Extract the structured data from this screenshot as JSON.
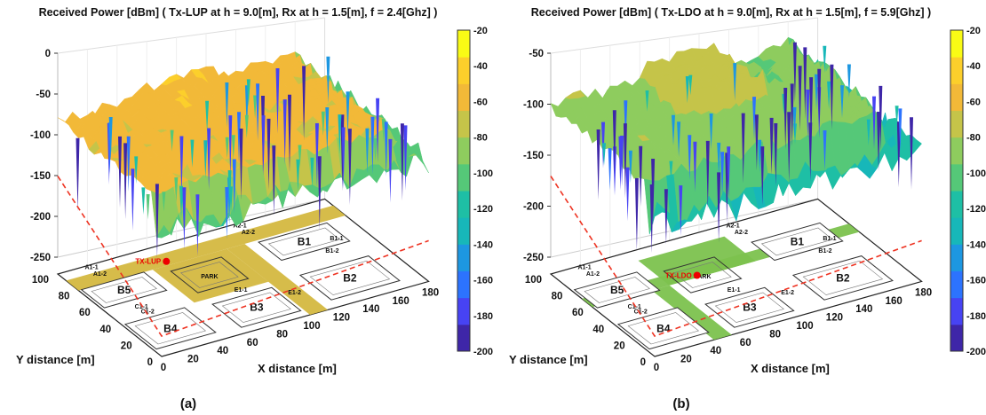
{
  "colormap": [
    "#3e26a8",
    "#4743f3",
    "#2c73fe",
    "#1d97e1",
    "#17b7b9",
    "#1ebfa5",
    "#55c878",
    "#8ecc5e",
    "#c5c449",
    "#f2b938",
    "#fccf2b",
    "#f9fb15"
  ],
  "chart_data": [
    {
      "type": "surface",
      "title": "Received Power [dBm]  ( Tx-LUP at h = 9.0[m], Rx at h = 1.5[m], f = 2.4[Ghz] )",
      "xlabel": "X distance [m]",
      "ylabel": "Y distance [m]",
      "caption": "(a)",
      "tx_label": "TX-LUP",
      "x_ticks": [
        "0",
        "20",
        "40",
        "60",
        "80",
        "100",
        "120",
        "140",
        "160",
        "180"
      ],
      "y_ticks": [
        "0",
        "20",
        "40",
        "60",
        "80",
        "100"
      ],
      "z_ticks": [
        "0",
        "-50",
        "-100",
        "-150",
        "-200",
        "-250"
      ],
      "zlim": [
        -250,
        0
      ],
      "colorbar_ticks": [
        "-20",
        "-40",
        "-60",
        "-80",
        "-100",
        "-120",
        "-140",
        "-160",
        "-180",
        "-200"
      ],
      "colorbar_range": [
        -200,
        -20
      ],
      "typical_level_dBm": -62,
      "buildings": [
        "B5",
        "B4",
        "B3",
        "B2",
        "B1",
        "PARK"
      ],
      "area_labels": [
        "A1-1",
        "A1-2",
        "A2-1",
        "A2-2",
        "B1-1",
        "B1-2",
        "C1-1",
        "C1-2",
        "E1-1",
        "E1-2"
      ],
      "road_fill": "#d4b840"
    },
    {
      "type": "surface",
      "title": "Received Power [dBm] ( Tx-LDO at h = 9.0[m], Rx at h = 1.5[m], f = 5.9[Ghz] )",
      "xlabel": "X distance [m]",
      "ylabel": "Y distance [m]",
      "caption": "(b)",
      "tx_label": "TX-LDO",
      "x_ticks": [
        "0",
        "20",
        "40",
        "60",
        "80",
        "100",
        "120",
        "140",
        "160",
        "180"
      ],
      "y_ticks": [
        "0",
        "20",
        "40",
        "60",
        "80",
        "100"
      ],
      "z_ticks": [
        "-50",
        "-100",
        "-150",
        "-200",
        "-250"
      ],
      "zlim": [
        -250,
        -50
      ],
      "colorbar_ticks": [
        "-20",
        "-40",
        "-60",
        "-80",
        "-100",
        "-120",
        "-140",
        "-160",
        "-180",
        "-200"
      ],
      "colorbar_range": [
        -200,
        -20
      ],
      "typical_level_dBm": -85,
      "buildings": [
        "B5",
        "B4",
        "B3",
        "B2",
        "B1",
        "PARK"
      ],
      "area_labels": [
        "A1-1",
        "A1-2",
        "A2-1",
        "A2-2",
        "B1-1",
        "B1-2",
        "C1-1",
        "C1-2",
        "E1-1",
        "E1-2"
      ],
      "road_fill": "#7cc24e"
    }
  ]
}
